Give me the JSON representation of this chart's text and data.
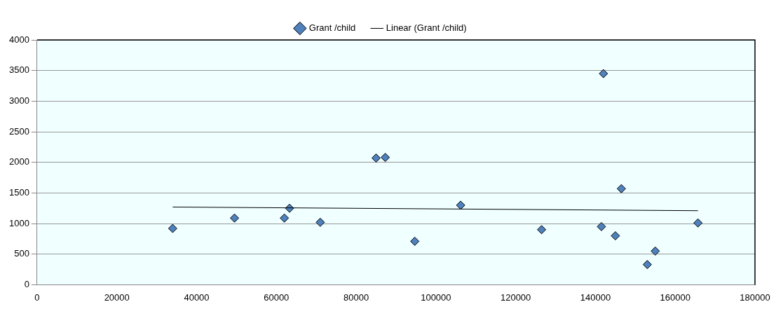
{
  "chart_data": {
    "type": "scatter",
    "xlim": [
      0,
      180000
    ],
    "xticks": [
      0,
      20000,
      40000,
      60000,
      80000,
      100000,
      120000,
      140000,
      160000,
      180000
    ],
    "ylim": [
      0,
      4000
    ],
    "yticks": [
      0,
      500,
      1000,
      1500,
      2000,
      2500,
      3000,
      3500,
      4000
    ],
    "grid": "y",
    "legend": "top",
    "marker": "diamond",
    "series": [
      {
        "name": "Grant /child",
        "color": "#4f81bd",
        "x": [
          34000,
          49500,
          62000,
          63300,
          71000,
          85000,
          87300,
          94700,
          106200,
          126500,
          141500,
          142000,
          145000,
          146500,
          153000,
          155000,
          165700
        ],
        "values": [
          920,
          1090,
          1090,
          1250,
          1020,
          2070,
          2080,
          710,
          1300,
          900,
          950,
          3450,
          800,
          1570,
          330,
          550,
          1010
        ]
      },
      {
        "name": "Linear (Grant /child)",
        "type": "line",
        "color": "#000000",
        "marker": "none",
        "x": [
          34000,
          165700
        ],
        "values": [
          1270,
          1210
        ]
      }
    ]
  }
}
